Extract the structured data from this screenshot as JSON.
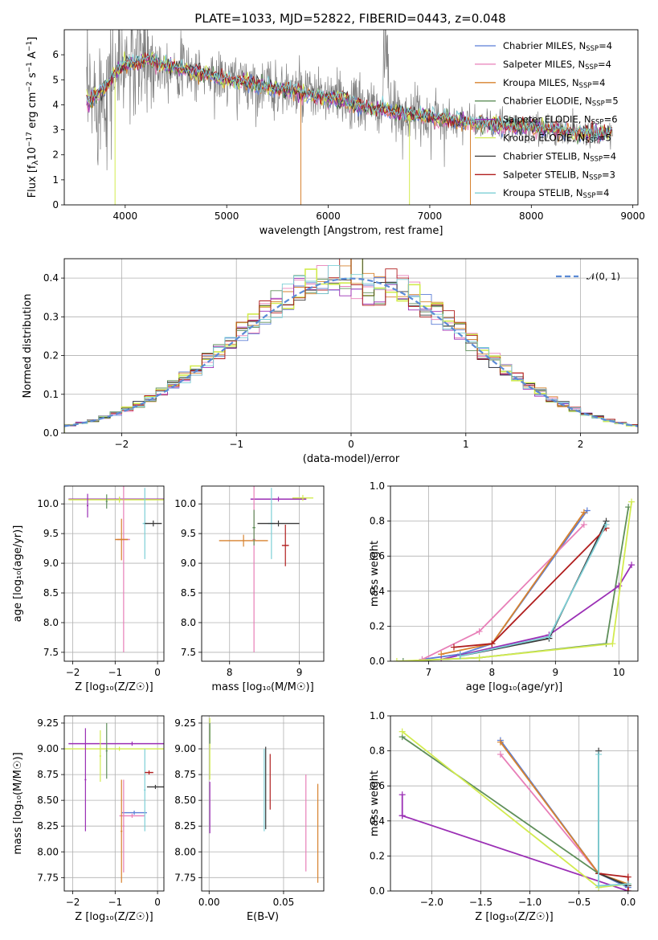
{
  "figure": {
    "title": "PLATE=1033, MJD=52822, FIBERID=0443, z=0.048"
  },
  "models": [
    {
      "name": "Chabrier MILES",
      "nssp": "4",
      "color": "#5b7dd6"
    },
    {
      "name": "Salpeter MILES",
      "nssp": "4",
      "color": "#e87fb8"
    },
    {
      "name": "Kroupa MILES",
      "nssp": "4",
      "color": "#d7822e"
    },
    {
      "name": "Chabrier ELODIE",
      "nssp": "5",
      "color": "#5f8f5a"
    },
    {
      "name": "Salpeter ELODIE",
      "nssp": "6",
      "color": "#9b2fb5"
    },
    {
      "name": "Kroupa ELODIE",
      "nssp": "5",
      "color": "#d2eb4f"
    },
    {
      "name": "Chabrier STELIB",
      "nssp": "4",
      "color": "#3a3a3a"
    },
    {
      "name": "Salpeter STELIB",
      "nssp": "3",
      "color": "#b01e1e"
    },
    {
      "name": "Kroupa STELIB",
      "nssp": "4",
      "color": "#7dcfd6"
    }
  ],
  "legend_nssp_prefix": "N",
  "legend_nssp_sub": "SSP",
  "chart_data": [
    {
      "id": "spectrum",
      "type": "line",
      "xlabel": "wavelength [Angstrom, rest frame]",
      "ylabel_parts": [
        "Flux [f",
        "λ",
        "10",
        "−17",
        " erg cm",
        "−2",
        " s",
        "−1",
        " A",
        "−1",
        "]"
      ],
      "xlim": [
        3400,
        9050
      ],
      "ylim": [
        0,
        7
      ],
      "xticks": [
        4000,
        5000,
        6000,
        7000,
        8000,
        9000
      ],
      "yticks": [
        0,
        1,
        2,
        3,
        4,
        5,
        6
      ],
      "legend_position": "top-right",
      "continuum": {
        "x": [
          3620,
          3700,
          3800,
          3900,
          4000,
          4200,
          4400,
          4600,
          4800,
          5000,
          5200,
          5400,
          5600,
          5800,
          6000,
          6200,
          6400,
          6600,
          6800,
          7000,
          7200,
          7400,
          7600,
          7800,
          8000,
          8200,
          8400,
          8600,
          8800
        ],
        "y": [
          4.1,
          4.3,
          4.7,
          5.3,
          5.6,
          5.8,
          5.6,
          5.4,
          5.2,
          5.0,
          4.9,
          4.7,
          4.6,
          4.4,
          4.3,
          4.1,
          3.9,
          3.75,
          3.6,
          3.5,
          3.4,
          3.3,
          3.2,
          3.15,
          3.1,
          3.0,
          2.9,
          2.85,
          2.9
        ]
      }
    },
    {
      "id": "residuals",
      "type": "step",
      "xlabel": "(data-model)/error",
      "ylabel": "Normed distribution",
      "xlim": [
        -2.5,
        2.5
      ],
      "ylim": [
        0,
        0.45
      ],
      "xticks": [
        -2,
        -1,
        0,
        1,
        2
      ],
      "xtick_labels": [
        "−2",
        "−1",
        "0",
        "1",
        "2"
      ],
      "yticks": [
        0.0,
        0.1,
        0.2,
        0.3,
        0.4
      ],
      "ytick_labels": [
        "0.0",
        "0.1",
        "0.2",
        "0.3",
        "0.4"
      ],
      "legend_label": "𝒩(0, 1)",
      "legend_position": "top-right",
      "reference": {
        "name": "N(0,1)",
        "mean": 0,
        "sigma": 1
      }
    },
    {
      "id": "age_vs_Z",
      "type": "errorbar",
      "xlabel": "Z [log₁₀(Z/Z☉)]",
      "ylabel": "age  [log₁₀(age/yr)]",
      "xlim": [
        -2.2,
        0.15
      ],
      "ylim": [
        7.35,
        10.3
      ],
      "xticks": [
        -2,
        -1,
        0
      ],
      "xtick_labels": [
        "−2",
        "−1",
        "0"
      ],
      "yticks": [
        7.5,
        8.0,
        8.5,
        9.0,
        9.5,
        10.0
      ],
      "ytick_labels": [
        "7.5",
        "8.0",
        "8.5",
        "9.0",
        "9.5",
        "10.0"
      ],
      "points": [
        {
          "c": 4,
          "x": -0.9,
          "xerr": 1.2,
          "y": 10.08,
          "yerr": 0.04
        },
        {
          "c": 5,
          "x": -0.9,
          "xerr": 1.2,
          "y": 10.07,
          "yerr": 0.05
        },
        {
          "c": 1,
          "x": -0.8,
          "xerr": 0.15,
          "y": 9.4,
          "yerr": 1.9
        },
        {
          "c": 2,
          "x": -0.85,
          "xerr": 0.15,
          "y": 9.4,
          "yerr": 0.35
        },
        {
          "c": 8,
          "x": -0.3,
          "xerr": 0.05,
          "y": 9.67,
          "yerr": 0.6
        },
        {
          "c": 6,
          "x": -0.1,
          "xerr": 0.2,
          "y": 9.67,
          "yerr": 0.05
        },
        {
          "c": 3,
          "x": -1.2,
          "xerr": 0.02,
          "y": 10.04,
          "yerr": 0.12
        },
        {
          "c": 4,
          "x": -1.65,
          "xerr": 0.02,
          "y": 9.97,
          "yerr": 0.2
        }
      ]
    },
    {
      "id": "age_vs_mass",
      "type": "errorbar",
      "xlabel": "mass [log₁₀(M/M☉)]",
      "ylabel": "",
      "xlim": [
        7.6,
        9.35
      ],
      "ylim": [
        7.35,
        10.3
      ],
      "xticks": [
        8,
        9
      ],
      "xtick_labels": [
        "8",
        "9"
      ],
      "yticks": [
        7.5,
        8.0,
        8.5,
        9.0,
        9.5,
        10.0
      ],
      "ytick_labels": [
        "7.5",
        "8.0",
        "8.5",
        "9.0",
        "9.5",
        "10.0"
      ],
      "points": [
        {
          "c": 4,
          "x": 8.7,
          "xerr": 0.4,
          "y": 10.08,
          "yerr": 0.04
        },
        {
          "c": 5,
          "x": 9.05,
          "xerr": 0.15,
          "y": 10.1,
          "yerr": 0.05
        },
        {
          "c": 1,
          "x": 8.35,
          "xerr": 0.02,
          "y": 9.4,
          "yerr": 1.9
        },
        {
          "c": 2,
          "x": 8.2,
          "xerr": 0.35,
          "y": 9.38,
          "yerr": 0.1
        },
        {
          "c": 8,
          "x": 8.6,
          "xerr": 0.05,
          "y": 9.67,
          "yerr": 0.6
        },
        {
          "c": 7,
          "x": 8.8,
          "xerr": 0.05,
          "y": 9.3,
          "yerr": 0.35
        },
        {
          "c": 6,
          "x": 8.7,
          "xerr": 0.3,
          "y": 9.67,
          "yerr": 0.05
        },
        {
          "c": 3,
          "x": 8.35,
          "xerr": 0.02,
          "y": 9.6,
          "yerr": 0.3
        }
      ]
    },
    {
      "id": "mass_weight_vs_age",
      "type": "line",
      "xlabel": "age  [log₁₀(age/yr)]",
      "ylabel": "mass weight",
      "xlim": [
        6.4,
        10.3
      ],
      "ylim": [
        0,
        1.0
      ],
      "xticks": [
        7,
        8,
        9,
        10
      ],
      "xtick_labels": [
        "7",
        "8",
        "9",
        "10"
      ],
      "yticks": [
        0.0,
        0.2,
        0.4,
        0.6,
        0.8,
        1.0
      ],
      "ytick_labels": [
        "0.0",
        "0.2",
        "0.4",
        "0.6",
        "0.8",
        "1.0"
      ],
      "series": [
        {
          "c": 0,
          "x": [
            6.9,
            7.5,
            8.0,
            9.5
          ],
          "y": [
            0.01,
            0.04,
            0.1,
            0.86
          ]
        },
        {
          "c": 1,
          "x": 6.9,
          "xs": [
            6.9,
            7.8,
            9.45
          ],
          "ys": [
            0.01,
            0.17,
            0.78
          ]
        },
        {
          "c": 2,
          "x": [
            7.2,
            8.0,
            9.45
          ],
          "y": [
            0.04,
            0.1,
            0.85
          ]
        },
        {
          "c": 3,
          "x": [
            6.6,
            7.8,
            9.8,
            10.15
          ],
          "y": [
            0.0,
            0.02,
            0.1,
            0.88
          ]
        },
        {
          "c": 4,
          "x": [
            7.2,
            8.9,
            10.0,
            10.2
          ],
          "y": [
            0.01,
            0.15,
            0.43,
            0.55
          ]
        },
        {
          "c": 5,
          "x": [
            6.5,
            7.8,
            9.9,
            10.2
          ],
          "y": [
            0.0,
            0.02,
            0.1,
            0.91
          ]
        },
        {
          "c": 6,
          "x": [
            7.5,
            8.9,
            9.8
          ],
          "y": [
            0.03,
            0.13,
            0.8
          ]
        },
        {
          "c": 7,
          "x": [
            7.4,
            8.0,
            9.8
          ],
          "y": [
            0.08,
            0.1,
            0.76
          ]
        },
        {
          "c": 8,
          "x": [
            7.5,
            8.9,
            9.8
          ],
          "y": [
            0.03,
            0.14,
            0.78
          ]
        }
      ]
    },
    {
      "id": "mass_vs_Z",
      "type": "errorbar",
      "xlabel": "Z [log₁₀(Z/Z☉)]",
      "ylabel": "mass [log₁₀(M/M☉)]",
      "xlim": [
        -2.2,
        0.15
      ],
      "ylim": [
        7.62,
        9.32
      ],
      "xticks": [
        -2,
        -1,
        0
      ],
      "xtick_labels": [
        "−2",
        "−1",
        "0"
      ],
      "yticks": [
        7.75,
        8.0,
        8.25,
        8.5,
        8.75,
        9.0,
        9.25
      ],
      "ytick_labels": [
        "7.75",
        "8.00",
        "8.25",
        "8.50",
        "8.75",
        "9.00",
        "9.25"
      ],
      "points": [
        {
          "c": 4,
          "x": -0.6,
          "xerr": 1.5,
          "y": 9.05,
          "yerr": 0.02
        },
        {
          "c": 5,
          "x": -0.9,
          "xerr": 1.3,
          "y": 9.0,
          "yerr": 0.02
        },
        {
          "c": 0,
          "x": -0.55,
          "xerr": 0.3,
          "y": 8.38,
          "yerr": 0.02
        },
        {
          "c": 1,
          "x": -0.6,
          "xerr": 0.3,
          "y": 8.35,
          "yerr": 0.02
        },
        {
          "c": 2,
          "x": -0.85,
          "xerr": 0.02,
          "y": 8.2,
          "yerr": 0.5
        },
        {
          "c": 1,
          "x": -0.8,
          "xerr": 0.02,
          "y": 8.25,
          "yerr": 0.45
        },
        {
          "c": 8,
          "x": -0.3,
          "xerr": 0.02,
          "y": 8.6,
          "yerr": 0.4
        },
        {
          "c": 7,
          "x": -0.2,
          "xerr": 0.1,
          "y": 8.77,
          "yerr": 0.02
        },
        {
          "c": 6,
          "x": -0.05,
          "xerr": 0.2,
          "y": 8.63,
          "yerr": 0.02
        },
        {
          "c": 3,
          "x": -1.2,
          "xerr": 0.02,
          "y": 8.98,
          "yerr": 0.27
        },
        {
          "c": 4,
          "x": -1.7,
          "xerr": 0.02,
          "y": 8.7,
          "yerr": 0.5
        },
        {
          "c": 5,
          "x": -1.35,
          "xerr": 0.02,
          "y": 8.93,
          "yerr": 0.25
        }
      ]
    },
    {
      "id": "mass_vs_ebv",
      "type": "errorbar",
      "xlabel": "E(B-V)",
      "ylabel": "",
      "xlim": [
        -0.005,
        0.077
      ],
      "ylim": [
        7.62,
        9.32
      ],
      "xticks": [
        0.0,
        0.05
      ],
      "xtick_labels": [
        "0.00",
        "0.05"
      ],
      "yticks": [
        7.75,
        8.0,
        8.25,
        8.5,
        8.75,
        9.0,
        9.25
      ],
      "ytick_labels": [
        "7.75",
        "8.00",
        "8.25",
        "8.50",
        "8.75",
        "9.00",
        "9.25"
      ],
      "points": [
        {
          "c": 4,
          "x": 0.0005,
          "xerr": 0,
          "y": 8.43,
          "yerr": 0.25
        },
        {
          "c": 5,
          "x": 0.0005,
          "xerr": 0,
          "y": 9.0,
          "yerr": 0.3
        },
        {
          "c": 3,
          "x": 0.0005,
          "xerr": 0,
          "y": 9.15,
          "yerr": 0.1
        },
        {
          "c": 8,
          "x": 0.037,
          "xerr": 0,
          "y": 8.6,
          "yerr": 0.4
        },
        {
          "c": 6,
          "x": 0.038,
          "xerr": 0,
          "y": 8.62,
          "yerr": 0.4
        },
        {
          "c": 7,
          "x": 0.041,
          "xerr": 0,
          "y": 8.68,
          "yerr": 0.27
        },
        {
          "c": 1,
          "x": 0.065,
          "xerr": 0,
          "y": 8.28,
          "yerr": 0.47
        },
        {
          "c": 2,
          "x": 0.073,
          "xerr": 0,
          "y": 8.18,
          "yerr": 0.48
        }
      ]
    },
    {
      "id": "mass_weight_vs_Z",
      "type": "line",
      "xlabel": "Z [log₁₀(Z/Z☉)]",
      "ylabel": "mass weight",
      "xlim": [
        -2.42,
        0.1
      ],
      "ylim": [
        0,
        1.0
      ],
      "xticks": [
        -2.0,
        -1.5,
        -1.0,
        -0.5,
        0.0
      ],
      "xtick_labels": [
        "−2.0",
        "−1.5",
        "−1.0",
        "−0.5",
        "0.0"
      ],
      "yticks": [
        0.0,
        0.2,
        0.4,
        0.6,
        0.8,
        1.0
      ],
      "ytick_labels": [
        "0.0",
        "0.2",
        "0.4",
        "0.6",
        "0.8",
        "1.0"
      ],
      "series": [
        {
          "c": 0,
          "x": [
            -1.3,
            -0.3,
            0.0
          ],
          "y": [
            0.86,
            0.1,
            0.02
          ]
        },
        {
          "c": 1,
          "x": [
            -1.3,
            -0.3,
            0.0
          ],
          "y": [
            0.78,
            0.1,
            0.03
          ]
        },
        {
          "c": 2,
          "x": [
            -1.3,
            -0.3,
            0.0
          ],
          "y": [
            0.85,
            0.1,
            0.04
          ]
        },
        {
          "c": 3,
          "x": [
            -2.3,
            -0.3,
            0.0
          ],
          "y": [
            0.88,
            0.1,
            0.03
          ]
        },
        {
          "c": 4,
          "x": [
            -2.3,
            -2.3,
            -2.3,
            0.0
          ],
          "y": [
            0.43,
            0.55,
            0.43,
            0.0
          ]
        },
        {
          "c": 5,
          "x": [
            -2.3,
            -0.3,
            0.0
          ],
          "y": [
            0.91,
            0.02,
            0.04
          ]
        },
        {
          "c": 6,
          "x": [
            -0.3,
            -0.3,
            0.0
          ],
          "y": [
            0.8,
            0.1,
            0.03
          ]
        },
        {
          "c": 7,
          "x": [
            -0.3,
            0.0,
            0.0
          ],
          "y": [
            0.1,
            0.08,
            0.0
          ]
        },
        {
          "c": 8,
          "x": [
            -0.3,
            -0.3,
            0.0
          ],
          "y": [
            0.78,
            0.03,
            0.04
          ]
        }
      ]
    }
  ]
}
